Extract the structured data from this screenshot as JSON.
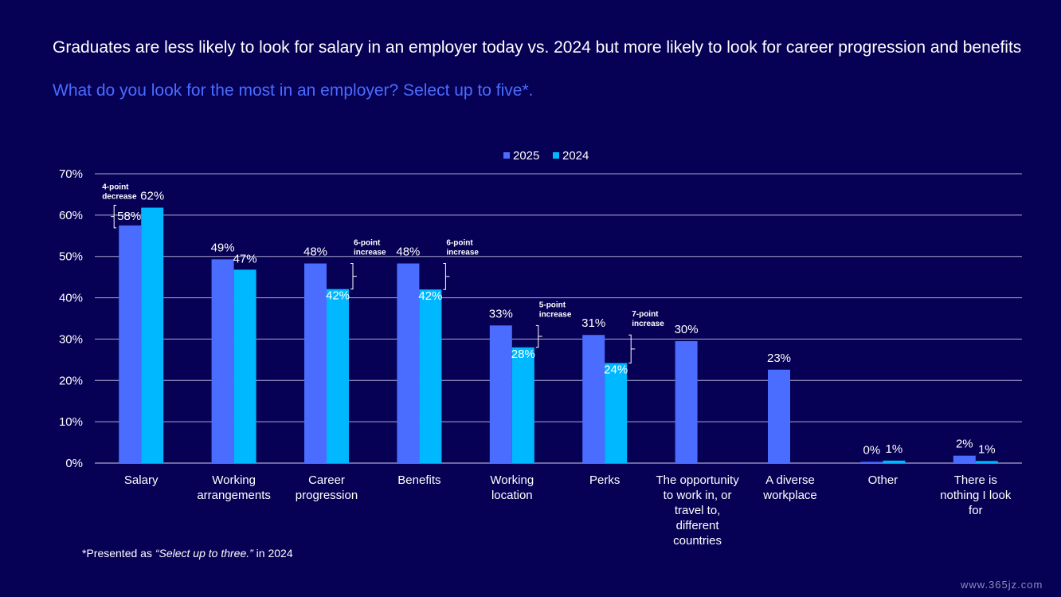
{
  "header": {
    "title": "Graduates are less likely to look for salary in an employer today vs. 2024 but more likely to look for career progression and benefits",
    "subtitle": "What do you look for the most in an employer? Select up to five*."
  },
  "footnote": {
    "prefix": "*Presented as ",
    "italic": "“Select up to three.”",
    "suffix": " in 2024"
  },
  "watermark": "www.365jz.com",
  "colors": {
    "background": "#060154",
    "series_2025": "#4a6cff",
    "series_2024": "#00b8ff",
    "grid": "#c8c8e8",
    "text": "#ffffff",
    "subtitle": "#4a6cff"
  },
  "chart_data": {
    "type": "bar",
    "title": "What do you look for the most in an employer? Select up to five*.",
    "categories": [
      [
        "Salary"
      ],
      [
        "Working",
        "arrangements"
      ],
      [
        "Career",
        "progression"
      ],
      [
        "Benefits"
      ],
      [
        "Working",
        "location"
      ],
      [
        "Perks"
      ],
      [
        "The opportunity",
        "to work in, or",
        "travel to,",
        "different",
        "countries"
      ],
      [
        "A diverse",
        "workplace"
      ],
      [
        "Other"
      ],
      [
        "There is",
        "nothing I look",
        "for"
      ]
    ],
    "series": [
      {
        "name": "2025",
        "values": [
          57.5,
          49.3,
          48.3,
          48.3,
          33.3,
          31,
          29.5,
          22.6,
          0.3,
          1.8
        ],
        "labels": [
          "58%",
          "49%",
          "48%",
          "48%",
          "33%",
          "31%",
          "30%",
          "23%",
          "0%",
          "2%"
        ]
      },
      {
        "name": "2024",
        "values": [
          61.8,
          46.8,
          42.1,
          42,
          28,
          24.2,
          null,
          null,
          0.6,
          0.5
        ],
        "labels": [
          "62%",
          "47%",
          "42%",
          "42%",
          "28%",
          "24%",
          null,
          null,
          "1%",
          "1%"
        ]
      }
    ],
    "ylim": [
      0,
      70
    ],
    "yticks": [
      "0%",
      "10%",
      "20%",
      "30%",
      "40%",
      "50%",
      "60%",
      "70%"
    ],
    "legend_position": "top-center",
    "annotations": [
      {
        "category": 0,
        "lines": [
          "4-point",
          "decrease"
        ],
        "type": "decrease"
      },
      {
        "category": 2,
        "lines": [
          "6-point",
          "increase"
        ],
        "type": "increase"
      },
      {
        "category": 3,
        "lines": [
          "6-point",
          "increase"
        ],
        "type": "increase"
      },
      {
        "category": 4,
        "lines": [
          "5-point",
          "increase"
        ],
        "type": "increase"
      },
      {
        "category": 5,
        "lines": [
          "7-point",
          "increase"
        ],
        "type": "increase"
      }
    ]
  }
}
